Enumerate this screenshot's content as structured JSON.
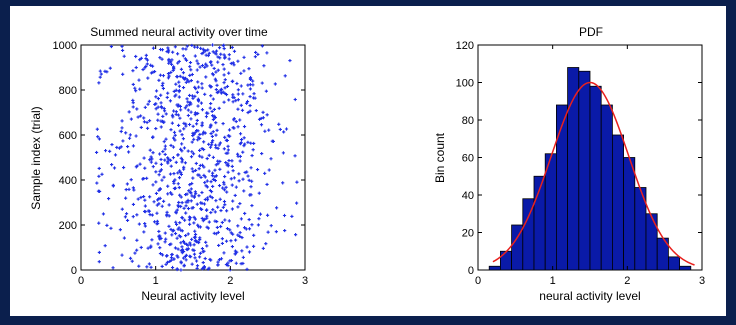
{
  "chart_data": [
    {
      "type": "scatter",
      "title": "Summed neural activity over time",
      "xlabel": "Neural activity level",
      "ylabel": "Sample index (trial)",
      "xlim": [
        0,
        3
      ],
      "ylim": [
        0,
        1000
      ],
      "xticks": [
        "0",
        "1",
        "2",
        "3"
      ],
      "yticks": [
        "0",
        "200",
        "400",
        "600",
        "800",
        "1000"
      ],
      "marker_color": "#1f2ee6",
      "points": {
        "count": 1000,
        "x_distribution": "normal",
        "x_mean": 1.5,
        "x_std": 0.52,
        "x_range": [
          0.2,
          2.9
        ],
        "y_range": [
          0,
          1000
        ]
      },
      "grid": false
    },
    {
      "type": "bar",
      "title": "PDF",
      "xlabel": "neural activity level",
      "ylabel": "Bin count",
      "xlim": [
        0,
        3
      ],
      "ylim": [
        0,
        120
      ],
      "xticks": [
        "0",
        "1",
        "2",
        "3"
      ],
      "yticks": [
        "0",
        "20",
        "40",
        "60",
        "80",
        "100",
        "120"
      ],
      "bin_edges": [
        0.15,
        0.3,
        0.45,
        0.6,
        0.75,
        0.9,
        1.05,
        1.2,
        1.35,
        1.5,
        1.65,
        1.8,
        1.95,
        2.1,
        2.25,
        2.4,
        2.55,
        2.7,
        2.85
      ],
      "values": [
        2,
        10,
        24,
        38,
        50,
        62,
        88,
        108,
        106,
        98,
        88,
        72,
        60,
        44,
        30,
        17,
        7,
        2
      ],
      "bar_color": "#0a1aa8",
      "fit_curve": {
        "type": "gaussian",
        "mean": 1.5,
        "std": 0.52,
        "peak": 100,
        "color": "#e8211e"
      },
      "grid": false
    }
  ]
}
